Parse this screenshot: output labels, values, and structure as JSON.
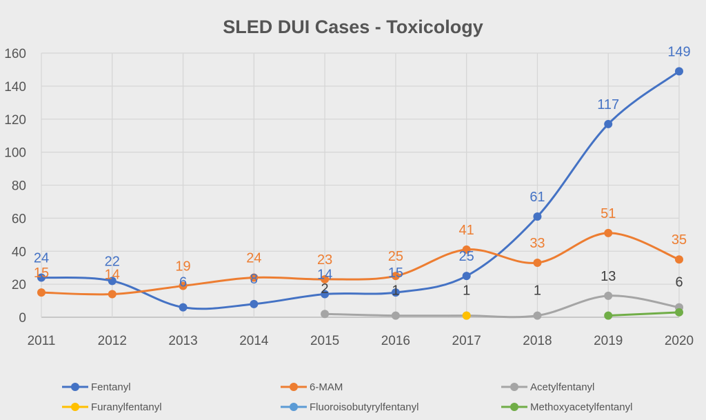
{
  "chart_data": {
    "type": "line",
    "title": "SLED DUI Cases - Toxicology",
    "xlabel": "",
    "ylabel": "",
    "categories": [
      "2011",
      "2012",
      "2013",
      "2014",
      "2015",
      "2016",
      "2017",
      "2018",
      "2019",
      "2020"
    ],
    "ylim": [
      0,
      160
    ],
    "yticks": [
      0,
      20,
      40,
      60,
      80,
      100,
      120,
      140,
      160
    ],
    "grid": true,
    "legend_position": "bottom",
    "series": [
      {
        "name": "Fentanyl",
        "color": "#4472c4",
        "labels": true,
        "values": [
          24,
          22,
          6,
          8,
          14,
          15,
          25,
          61,
          117,
          149
        ]
      },
      {
        "name": "6-MAM",
        "color": "#ed7d31",
        "labels": true,
        "values": [
          15,
          14,
          19,
          24,
          23,
          25,
          41,
          33,
          51,
          35
        ]
      },
      {
        "name": "Acetylfentanyl",
        "color": "#a5a5a5",
        "labels": true,
        "label_color": "#404040",
        "values": [
          null,
          null,
          null,
          null,
          2,
          1,
          1,
          1,
          13,
          6
        ]
      },
      {
        "name": "Furanylfentanyl",
        "color": "#ffc000",
        "labels": false,
        "values": [
          null,
          null,
          null,
          null,
          null,
          null,
          1,
          null,
          null,
          null
        ]
      },
      {
        "name": "Fluoroisobutyrylfentanyl",
        "color": "#5b9bd5",
        "labels": false,
        "values": [
          null,
          null,
          null,
          null,
          null,
          null,
          null,
          null,
          null,
          null
        ]
      },
      {
        "name": "Methoxyacetylfentanyl",
        "color": "#70ad47",
        "labels": false,
        "values": [
          null,
          null,
          null,
          null,
          null,
          null,
          null,
          null,
          1,
          3
        ]
      }
    ]
  }
}
